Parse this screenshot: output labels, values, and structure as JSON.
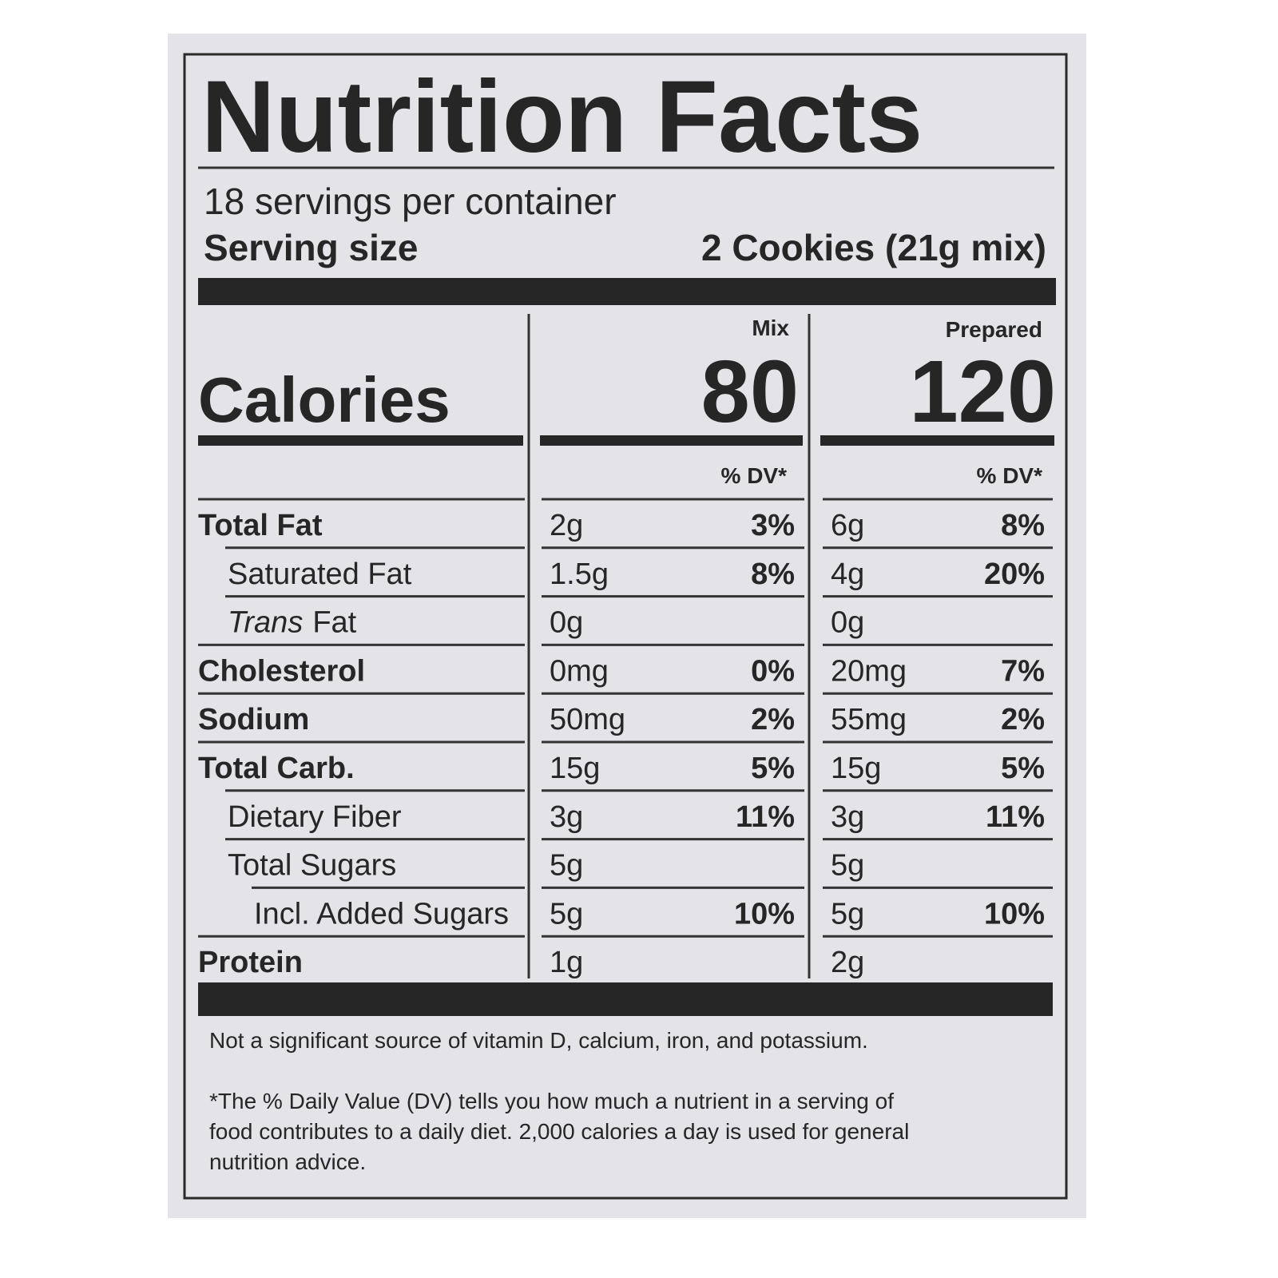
{
  "title": "Nutrition Facts",
  "servings": "18 servings per container",
  "serving_size": {
    "label": "Serving size",
    "value": "2 Cookies (21g mix)"
  },
  "columns": {
    "mix": "Mix",
    "prepared": "Prepared"
  },
  "calories": {
    "label": "Calories",
    "mix": "80",
    "prepared": "120"
  },
  "dv_header": {
    "mix": "% DV*",
    "prepared": "% DV*"
  },
  "rows": [
    {
      "name": "Total Fat",
      "level": 0,
      "mix": {
        "amount": "2g",
        "dv": "3%"
      },
      "prepared": {
        "amount": "6g",
        "dv": "8%"
      }
    },
    {
      "name": "Saturated Fat",
      "level": 1,
      "mix": {
        "amount": "1.5g",
        "dv": "8%"
      },
      "prepared": {
        "amount": "4g",
        "dv": "20%"
      }
    },
    {
      "name_parts": [
        "Trans",
        "Fat"
      ],
      "level": 1,
      "mix": {
        "amount": "0g"
      },
      "prepared": {
        "amount": "0g"
      }
    },
    {
      "name": "Cholesterol",
      "level": 0,
      "mix": {
        "amount": "0mg",
        "dv": "0%"
      },
      "prepared": {
        "amount": "20mg",
        "dv": "7%"
      }
    },
    {
      "name": "Sodium",
      "level": 0,
      "mix": {
        "amount": "50mg",
        "dv": "2%"
      },
      "prepared": {
        "amount": "55mg",
        "dv": "2%"
      }
    },
    {
      "name": "Total Carb.",
      "level": 0,
      "mix": {
        "amount": "15g",
        "dv": "5%"
      },
      "prepared": {
        "amount": "15g",
        "dv": "5%"
      }
    },
    {
      "name": "Dietary Fiber",
      "level": 1,
      "mix": {
        "amount": "3g",
        "dv": "11%"
      },
      "prepared": {
        "amount": "3g",
        "dv": "11%"
      }
    },
    {
      "name": "Total Sugars",
      "level": 1,
      "mix": {
        "amount": "5g"
      },
      "prepared": {
        "amount": "5g"
      }
    },
    {
      "name": "Incl. Added Sugars",
      "level": 2,
      "mix": {
        "amount": "5g",
        "dv": "10%"
      },
      "prepared": {
        "amount": "5g",
        "dv": "10%"
      }
    },
    {
      "name": "Protein",
      "level": 0,
      "mix": {
        "amount": "1g"
      },
      "prepared": {
        "amount": "2g"
      }
    }
  ],
  "footnotes": {
    "not_significant": "Not a significant source of vitamin D, calcium, iron, and potassium.",
    "dv_lines": [
      "*The % Daily Value (DV) tells you how much a nutrient in a serving of",
      "food contributes to a daily diet. 2,000 calories a day is used for general",
      "nutrition advice."
    ]
  }
}
